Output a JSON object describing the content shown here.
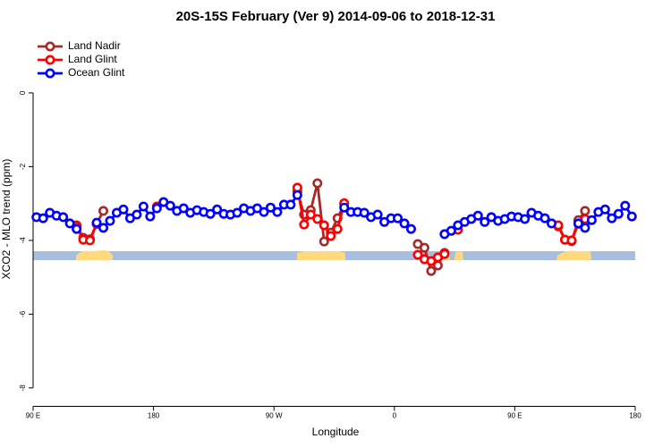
{
  "chart_data": {
    "type": "line",
    "title": "20S-15S February (Ver 9)   2014-09-06 to 2018-12-31",
    "x_label": "Longitude",
    "y_label": "XCO2 - MLO trend (ppm)",
    "xlim": [
      90,
      540
    ],
    "ylim": [
      -8.5,
      1.55
    ],
    "xticks": [
      {
        "value": 90,
        "label": "90 E"
      },
      {
        "value": 180,
        "label": "180"
      },
      {
        "value": 270,
        "label": "90 W"
      },
      {
        "value": 360,
        "label": "0"
      },
      {
        "value": 450,
        "label": "90 E"
      },
      {
        "value": 540,
        "label": "180"
      }
    ],
    "yticks": [
      0,
      -2,
      -4,
      -6,
      -8
    ],
    "legend": "top-left",
    "x": [
      92.5,
      97.5,
      102.5,
      107.5,
      112.5,
      117.5,
      122.5,
      127.5,
      132.5,
      137.5,
      142.5,
      147.5,
      152.5,
      157.5,
      162.5,
      167.5,
      172.5,
      177.5,
      182.5,
      187.5,
      192.5,
      197.5,
      202.5,
      207.5,
      212.5,
      217.5,
      222.5,
      227.5,
      232.5,
      237.5,
      242.5,
      247.5,
      252.5,
      257.5,
      262.5,
      267.5,
      272.5,
      277.5,
      282.5,
      287.5,
      292.5,
      297.5,
      302.5,
      307.5,
      312.5,
      317.5,
      322.5,
      327.5,
      332.5,
      337.5,
      342.5,
      347.5,
      352.5,
      357.5,
      362.5,
      367.5,
      372.5,
      377.5,
      382.5,
      387.5,
      392.5,
      397.5,
      402.5,
      407.5,
      412.5,
      417.5,
      422.5,
      427.5,
      432.5,
      437.5,
      442.5,
      447.5,
      452.5,
      457.5,
      462.5,
      467.5,
      472.5,
      477.5,
      482.5,
      487.5,
      492.5,
      497.5,
      502.5,
      507.5,
      512.5,
      517.5,
      522.5,
      527.5,
      532.5,
      537.5
    ],
    "series": [
      {
        "name": "Land Nadir",
        "color": "#a52a2a",
        "values": [
          null,
          null,
          null,
          null,
          null,
          null,
          -3.59,
          -3.93,
          -3.97,
          -3.55,
          -3.2,
          null,
          null,
          null,
          null,
          null,
          null,
          null,
          null,
          null,
          null,
          null,
          null,
          null,
          null,
          null,
          null,
          null,
          null,
          null,
          null,
          null,
          null,
          null,
          null,
          null,
          null,
          null,
          null,
          -2.67,
          -3.3,
          -3.18,
          -2.45,
          -4.03,
          -3.79,
          -3.4,
          -3.01,
          null,
          null,
          null,
          null,
          null,
          null,
          null,
          null,
          null,
          null,
          -4.1,
          -4.2,
          -4.83,
          -4.68,
          -4.34,
          null,
          null,
          null,
          null,
          null,
          null,
          null,
          null,
          null,
          null,
          null,
          null,
          null,
          null,
          null,
          null,
          -3.62,
          -3.98,
          -4.02,
          -3.45,
          -3.2,
          null,
          null,
          null,
          null,
          null,
          null,
          null
        ]
      },
      {
        "name": "Land Glint",
        "color": "#ff0000",
        "values": [
          null,
          null,
          null,
          null,
          null,
          null,
          -3.62,
          -3.98,
          -4.0,
          -3.55,
          null,
          null,
          null,
          null,
          null,
          null,
          null,
          null,
          -3.08,
          null,
          null,
          null,
          null,
          null,
          null,
          null,
          null,
          null,
          null,
          null,
          null,
          null,
          null,
          null,
          null,
          null,
          null,
          null,
          null,
          -2.57,
          -3.57,
          -3.3,
          -3.42,
          -3.59,
          -3.88,
          -3.69,
          -2.99,
          null,
          null,
          null,
          null,
          null,
          null,
          null,
          null,
          null,
          null,
          -4.39,
          -4.51,
          -4.56,
          -4.46,
          -4.37,
          null,
          -3.71,
          null,
          null,
          null,
          null,
          null,
          null,
          null,
          null,
          null,
          null,
          null,
          null,
          null,
          null,
          -3.59,
          -3.98,
          -4.0,
          -3.55,
          -3.42,
          null,
          null,
          null,
          null,
          null,
          null,
          null
        ]
      },
      {
        "name": "Ocean Glint",
        "color": "#0000ff",
        "values": [
          -3.37,
          -3.4,
          -3.25,
          -3.33,
          -3.37,
          -3.54,
          -3.69,
          null,
          null,
          -3.52,
          -3.66,
          -3.47,
          -3.25,
          -3.16,
          -3.4,
          -3.3,
          -3.08,
          -3.35,
          -3.13,
          -2.96,
          -3.06,
          -3.2,
          -3.13,
          -3.25,
          -3.18,
          -3.23,
          -3.28,
          -3.16,
          -3.28,
          -3.3,
          -3.25,
          -3.13,
          -3.2,
          -3.13,
          -3.23,
          -3.11,
          -3.23,
          -3.03,
          -3.03,
          -2.77,
          null,
          null,
          null,
          null,
          null,
          null,
          -3.11,
          -3.23,
          -3.23,
          -3.25,
          -3.37,
          -3.3,
          -3.5,
          -3.4,
          -3.4,
          -3.54,
          -3.69,
          null,
          null,
          null,
          null,
          -3.83,
          -3.74,
          -3.59,
          -3.5,
          -3.42,
          -3.33,
          -3.5,
          -3.37,
          -3.47,
          -3.42,
          -3.35,
          -3.37,
          -3.42,
          -3.25,
          -3.33,
          -3.4,
          -3.54,
          null,
          null,
          null,
          -3.54,
          -3.66,
          -3.45,
          -3.23,
          -3.16,
          -3.4,
          -3.28,
          -3.06,
          -3.35
        ]
      }
    ]
  }
}
